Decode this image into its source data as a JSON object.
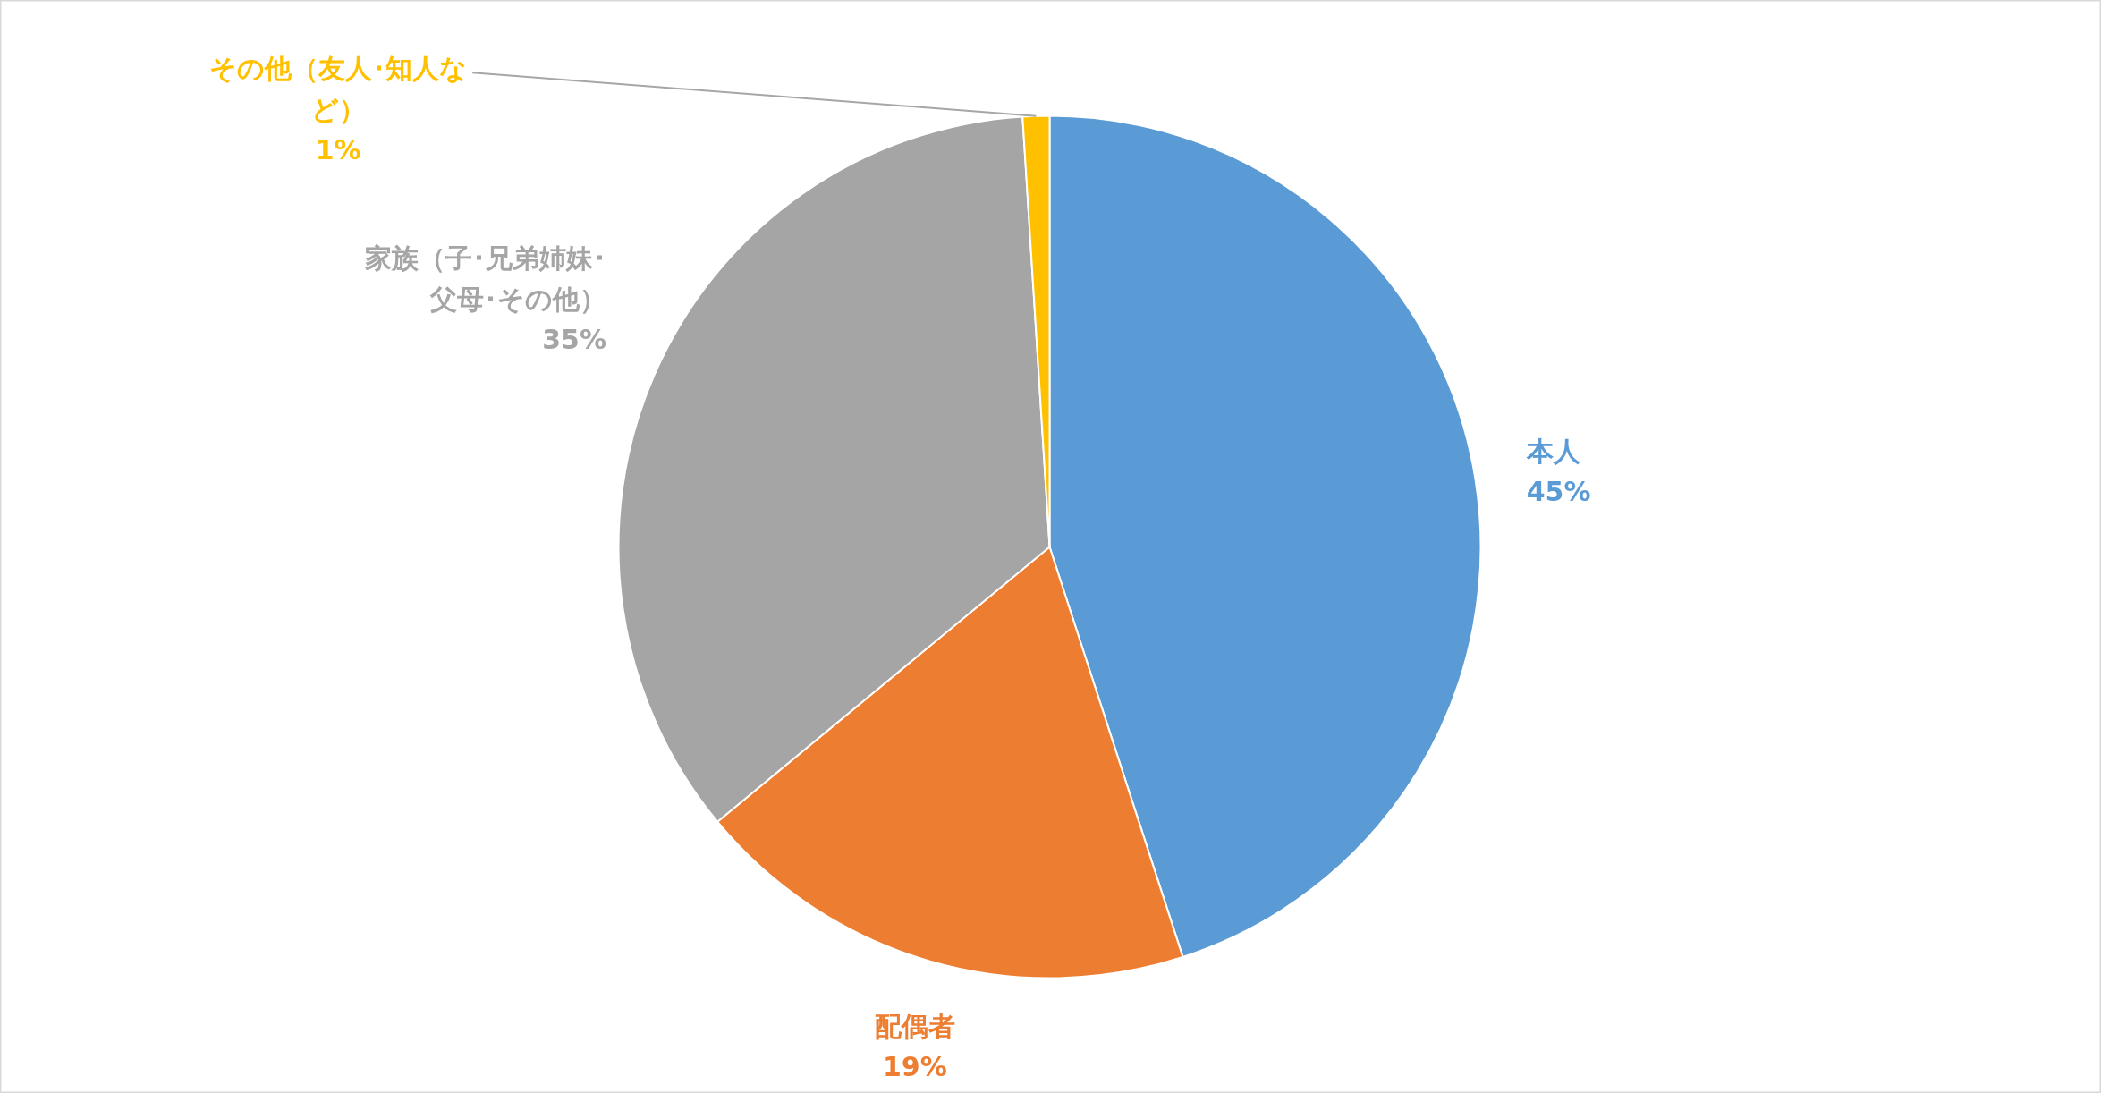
{
  "chart_data": {
    "type": "pie",
    "categories": [
      "本人",
      "配偶者",
      "家族（子･兄弟姉妹･父母･その他）",
      "その他（友人･知人など）"
    ],
    "values": [
      45,
      19,
      35,
      1
    ],
    "colors": [
      "#5b9bd5",
      "#ed7d31",
      "#a5a5a5",
      "#ffc000"
    ],
    "value_labels": [
      "45%",
      "19%",
      "35%",
      "1%"
    ]
  }
}
